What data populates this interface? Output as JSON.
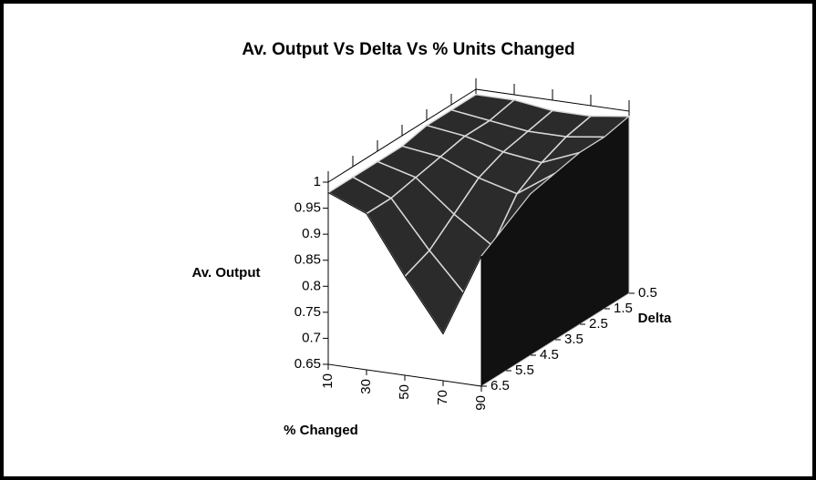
{
  "chart_data": {
    "type": "surface3d",
    "title": "Av. Output Vs Delta Vs % Units Changed",
    "x_label": "% Changed",
    "z_label": "Av. Output",
    "depth_label": "Delta",
    "categories": [
      "10",
      "30",
      "50",
      "70",
      "90"
    ],
    "series": [
      {
        "name": "0.5",
        "values": [
          0.99,
          0.99,
          0.98,
          0.98,
          0.99
        ]
      },
      {
        "name": "1.5",
        "values": [
          0.99,
          0.98,
          0.97,
          0.97,
          0.98
        ]
      },
      {
        "name": "2.5",
        "values": [
          0.99,
          0.98,
          0.96,
          0.95,
          0.98
        ]
      },
      {
        "name": "3.5",
        "values": [
          0.98,
          0.97,
          0.94,
          0.92,
          0.97
        ]
      },
      {
        "name": "4.5",
        "values": [
          0.98,
          0.96,
          0.9,
          0.85,
          0.96
        ]
      },
      {
        "name": "5.5",
        "values": [
          0.98,
          0.95,
          0.86,
          0.78,
          0.93
        ]
      },
      {
        "name": "6.5",
        "values": [
          0.98,
          0.95,
          0.84,
          0.74,
          0.9
        ]
      }
    ],
    "zlim": [
      0.65,
      1
    ],
    "zticks": [
      0.65,
      0.7,
      0.75,
      0.8,
      0.85,
      0.9,
      0.95,
      1
    ],
    "surface_color": "#2b2b2b",
    "edge_color": "#d8d8d8"
  }
}
